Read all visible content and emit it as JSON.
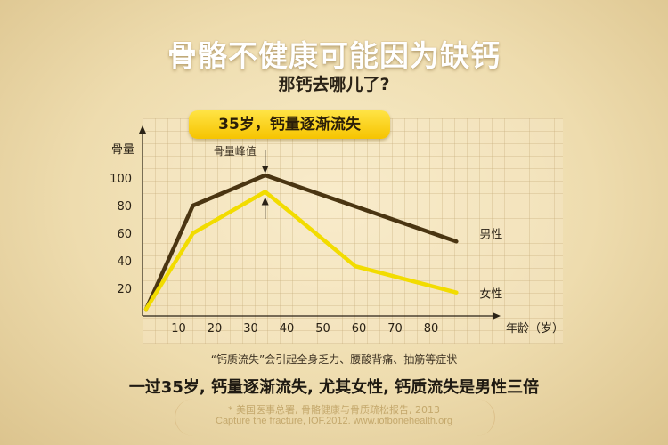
{
  "header": {
    "title": "骨骼不健康可能因为缺钙",
    "subtitle": "那钙去哪儿了?"
  },
  "callout": {
    "text": "35岁，钙量逐渐流失"
  },
  "chart_data": {
    "type": "line",
    "title": "",
    "xlabel": "年龄（岁）",
    "ylabel": "骨量",
    "xticks": [
      10,
      20,
      30,
      40,
      50,
      60,
      70,
      80
    ],
    "yticks": [
      20,
      40,
      60,
      80,
      100
    ],
    "xlim": [
      0,
      100
    ],
    "ylim": [
      0,
      120
    ],
    "grid": true,
    "legend": "series labels at line ends (right)",
    "annotation": "骨量峰值",
    "series": [
      {
        "name": "男性",
        "color": "#4a3512",
        "x": [
          1,
          14,
          34,
          87
        ],
        "y": [
          5,
          80,
          102,
          54
        ]
      },
      {
        "name": "女性",
        "color": "#f2dc00",
        "x": [
          1,
          14,
          34,
          42,
          59,
          87
        ],
        "y": [
          5,
          60,
          90,
          73,
          36,
          17
        ]
      }
    ]
  },
  "footer": {
    "caption": "“钙质流失”会引起全身乏力、腰酸背痛、抽筋等症状",
    "summary": "一过35岁, 钙量逐渐流失, 尤其女性, 钙质流失是男性三倍",
    "source_cn": "* 美国医事总署, 骨骼健康与骨质疏松报告, 2013",
    "source_en": "Capture the fracture, IOF.2012. www.iofbonehealth.org"
  },
  "colors": {
    "background": "#eedcae",
    "male_line": "#4a3512",
    "female_line": "#f2dc00",
    "callout": "#ffd400"
  }
}
